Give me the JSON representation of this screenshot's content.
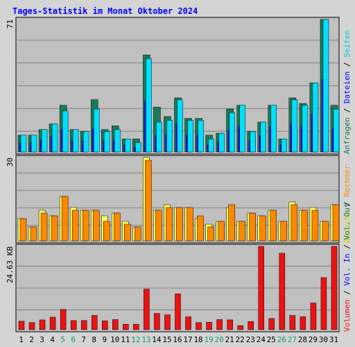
{
  "title": "Tages-Statistik im Monat Oktober 2024",
  "colors": {
    "background": "#d4d4d4",
    "panel": "#c0c0c0",
    "grid": "#808080",
    "title": "#0000ff",
    "requests": "#1a7a5a",
    "files": "#00e0ff",
    "pages": "#00ccdd",
    "visits": "#ffff55",
    "hosts": "#ff8800",
    "volume": "#ee1111",
    "weekend": "#1a9a6a",
    "daylabel": "#000000"
  },
  "chart_data": [
    {
      "type": "bar",
      "panel": "top",
      "y_max_label": "71",
      "ylim": [
        0,
        71
      ],
      "categories": [
        "1",
        "2",
        "3",
        "4",
        "5",
        "6",
        "7",
        "8",
        "9",
        "10",
        "11",
        "12",
        "13",
        "14",
        "15",
        "16",
        "17",
        "18",
        "19",
        "20",
        "21",
        "22",
        "23",
        "24",
        "25",
        "26",
        "27",
        "28",
        "29",
        "30",
        "31"
      ],
      "series": [
        {
          "name": "Anfragen",
          "values": [
            9,
            9,
            12,
            15,
            25,
            12,
            11,
            28,
            12,
            14,
            7,
            7,
            52,
            24,
            19,
            29,
            18,
            18,
            9,
            10,
            23,
            25,
            11,
            16,
            25,
            7,
            29,
            26,
            37,
            71,
            25
          ]
        },
        {
          "name": "Dateien",
          "values": [
            9,
            9,
            12,
            15,
            22,
            12,
            11,
            23,
            11,
            12,
            7,
            5,
            50,
            16,
            17,
            28,
            17,
            17,
            7,
            10,
            21,
            25,
            11,
            16,
            25,
            7,
            28,
            25,
            37,
            71,
            23
          ]
        },
        {
          "name": "Seiten",
          "values": [
            9,
            9,
            12,
            15,
            22,
            12,
            11,
            23,
            11,
            12,
            7,
            5,
            50,
            16,
            17,
            28,
            17,
            17,
            7,
            10,
            21,
            25,
            11,
            16,
            25,
            7,
            28,
            25,
            37,
            71,
            23
          ]
        }
      ],
      "legend": [
        "Anfragen",
        "Dateien",
        "Seiten"
      ]
    },
    {
      "type": "bar",
      "panel": "middle",
      "y_max_label": "30",
      "ylim": [
        0,
        30
      ],
      "categories": [
        "1",
        "2",
        "3",
        "4",
        "5",
        "6",
        "7",
        "8",
        "9",
        "10",
        "11",
        "12",
        "13",
        "14",
        "15",
        "16",
        "17",
        "18",
        "19",
        "20",
        "21",
        "22",
        "23",
        "24",
        "25",
        "26",
        "27",
        "28",
        "29",
        "30",
        "31"
      ],
      "series": [
        {
          "name": "Besuche",
          "values": [
            8,
            5,
            11,
            9,
            16,
            12,
            11,
            11,
            9,
            10,
            7,
            5,
            30,
            11,
            13,
            12,
            12,
            8,
            6,
            7,
            12,
            7,
            10,
            9,
            11,
            7,
            14,
            11,
            12,
            7,
            13
          ]
        },
        {
          "name": "Rechner",
          "values": [
            8,
            5,
            10,
            9,
            16,
            11,
            11,
            11,
            7,
            10,
            6,
            5,
            29,
            11,
            12,
            12,
            12,
            9,
            5,
            7,
            13,
            7,
            10,
            9,
            11,
            7,
            13,
            11,
            11,
            7,
            13
          ]
        }
      ],
      "legend": [
        "Besuche",
        "Rechner"
      ]
    },
    {
      "type": "bar",
      "panel": "bottom",
      "y_max_label": "24.63 KB",
      "ylim": [
        0,
        24.63
      ],
      "categories": [
        "1",
        "2",
        "3",
        "4",
        "5",
        "6",
        "7",
        "8",
        "9",
        "10",
        "11",
        "12",
        "13",
        "14",
        "15",
        "16",
        "17",
        "18",
        "19",
        "20",
        "21",
        "22",
        "23",
        "24",
        "25",
        "26",
        "27",
        "28",
        "29",
        "30",
        "31"
      ],
      "series": [
        {
          "name": "Volumen",
          "values": [
            2.5,
            2.1,
            2.9,
            3.7,
            6.0,
            2.7,
            2.7,
            4.2,
            2.6,
            3.0,
            1.6,
            1.6,
            12.0,
            4.8,
            4.4,
            10.6,
            3.8,
            2.1,
            2.2,
            3.0,
            2.9,
            1.2,
            2.4,
            24.63,
            3.3,
            22.6,
            4.2,
            3.8,
            7.9,
            15.4,
            24.63
          ]
        }
      ],
      "legend": [
        "Volumen",
        "Vol. In",
        "Vol. Out"
      ]
    }
  ],
  "x_labels": [
    "1",
    "2",
    "3",
    "4",
    "5",
    "6",
    "7",
    "8",
    "9",
    "10",
    "11",
    "12",
    "13",
    "14",
    "15",
    "16",
    "17",
    "18",
    "19",
    "20",
    "21",
    "22",
    "23",
    "24",
    "25",
    "26",
    "27",
    "28",
    "29",
    "30",
    "31"
  ],
  "weekend_days": [
    "5",
    "6",
    "12",
    "13",
    "19",
    "20",
    "26",
    "27"
  ],
  "right_legend": {
    "top": [
      {
        "text": "Anfragen",
        "color": "#1a7a5a"
      },
      {
        "text": " / ",
        "color": "#000000"
      },
      {
        "text": "Dateien",
        "color": "#0000ff"
      },
      {
        "text": " / ",
        "color": "#000000"
      },
      {
        "text": "Seiten",
        "color": "#00ccdd"
      }
    ],
    "middle": [
      {
        "text": "Besuche",
        "color": "#ddcc00"
      },
      {
        "text": " / ",
        "color": "#000000"
      },
      {
        "text": "Rechner",
        "color": "#ff8800"
      }
    ],
    "bottom": [
      {
        "text": "Volumen",
        "color": "#ee1111"
      },
      {
        "text": " / ",
        "color": "#000000"
      },
      {
        "text": "Vol. In",
        "color": "#0000ff"
      },
      {
        "text": " / ",
        "color": "#000000"
      },
      {
        "text": "Vol. Out",
        "color": "#1a7a5a"
      }
    ]
  }
}
